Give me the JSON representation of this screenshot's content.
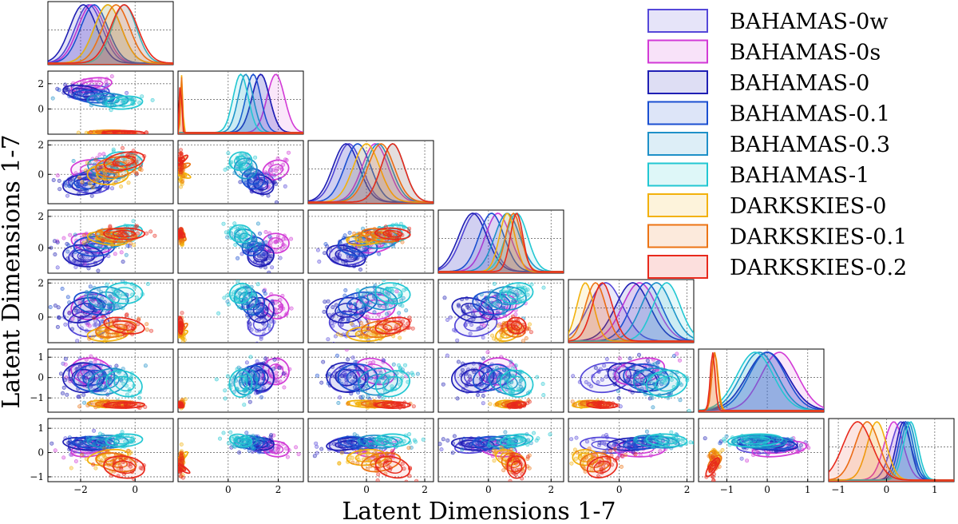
{
  "chart_data": {
    "type": "corner",
    "xlabel": "Latent Dimensions 1-7",
    "ylabel": "Latent Dimensions 1-7",
    "dimensions": [
      {
        "name": "dim1",
        "range": [
          -3.2,
          1.4
        ],
        "ticks": [
          -2,
          0
        ],
        "tick_labels": [
          "−2",
          "0"
        ]
      },
      {
        "name": "dim2",
        "range": [
          -2.0,
          3.0
        ],
        "ticks": [
          0,
          2
        ],
        "tick_labels": [
          "0",
          "2"
        ]
      },
      {
        "name": "dim3",
        "range": [
          -2.0,
          2.3
        ],
        "ticks": [
          0,
          2
        ],
        "tick_labels": [
          "0",
          "2"
        ]
      },
      {
        "name": "dim4",
        "range": [
          -1.6,
          2.4
        ],
        "ticks": [
          0,
          2
        ],
        "tick_labels": [
          "0",
          "2"
        ]
      },
      {
        "name": "dim5",
        "range": [
          -1.5,
          2.2
        ],
        "ticks": [
          0,
          2
        ],
        "tick_labels": [
          "0",
          "2"
        ]
      },
      {
        "name": "dim6",
        "range": [
          -1.7,
          1.4
        ],
        "ticks": [
          -1,
          0,
          1
        ],
        "tick_labels": [
          "−1",
          "0",
          "1"
        ]
      },
      {
        "name": "dim7",
        "range": [
          -1.2,
          1.4
        ],
        "ticks": [
          -1,
          0,
          1
        ],
        "tick_labels": [
          "−1",
          "0",
          "1"
        ]
      }
    ],
    "series": [
      {
        "name": "BAHAMAS-0w",
        "color": "#5548d9",
        "means": [
          -1.7,
          1.3,
          -0.6,
          -0.4,
          -0.4,
          0.0,
          0.3
        ],
        "sds": [
          0.5,
          0.35,
          0.45,
          0.45,
          0.5,
          0.5,
          0.2
        ]
      },
      {
        "name": "BAHAMAS-0s",
        "color": "#d23ad6",
        "means": [
          -1.6,
          1.9,
          0.3,
          0.3,
          0.6,
          0.3,
          0.15
        ],
        "sds": [
          0.5,
          0.35,
          0.45,
          0.4,
          0.5,
          0.45,
          0.2
        ]
      },
      {
        "name": "BAHAMAS-0",
        "color": "#1f1fb4",
        "means": [
          -1.9,
          1.3,
          -0.7,
          -0.5,
          0.4,
          0.0,
          0.35
        ],
        "sds": [
          0.5,
          0.35,
          0.45,
          0.45,
          0.5,
          0.5,
          0.15
        ]
      },
      {
        "name": "BAHAMAS-0.1",
        "color": "#1a4fd1",
        "means": [
          -1.5,
          1.0,
          -0.3,
          0.1,
          0.8,
          0.0,
          0.4
        ],
        "sds": [
          0.5,
          0.3,
          0.45,
          0.4,
          0.45,
          0.45,
          0.15
        ]
      },
      {
        "name": "BAHAMAS-0.3",
        "color": "#1e90c8",
        "means": [
          -1.0,
          0.7,
          0.4,
          0.6,
          1.1,
          -0.2,
          0.45
        ],
        "sds": [
          0.5,
          0.3,
          0.45,
          0.4,
          0.45,
          0.45,
          0.15
        ]
      },
      {
        "name": "BAHAMAS-1",
        "color": "#22c7d2",
        "means": [
          -0.4,
          0.5,
          0.9,
          0.9,
          1.4,
          -0.3,
          0.5
        ],
        "sds": [
          0.45,
          0.3,
          0.4,
          0.35,
          0.4,
          0.45,
          0.15
        ]
      },
      {
        "name": "DARKSKIES-0",
        "color": "#f2b10c",
        "means": [
          -1.0,
          -1.85,
          0.0,
          0.6,
          -1.0,
          -1.3,
          -0.2
        ],
        "sds": [
          0.5,
          0.04,
          0.45,
          0.25,
          0.25,
          0.08,
          0.2
        ]
      },
      {
        "name": "DARKSKIES-0.1",
        "color": "#ec7414",
        "means": [
          -0.7,
          -1.87,
          0.5,
          0.8,
          -0.7,
          -1.3,
          -0.4
        ],
        "sds": [
          0.5,
          0.04,
          0.45,
          0.25,
          0.3,
          0.07,
          0.25
        ]
      },
      {
        "name": "DARKSKIES-0.2",
        "color": "#e8291c",
        "means": [
          -0.4,
          -1.9,
          0.9,
          0.9,
          -0.5,
          -1.35,
          -0.6
        ],
        "sds": [
          0.5,
          0.04,
          0.4,
          0.2,
          0.3,
          0.06,
          0.3
        ]
      }
    ]
  }
}
